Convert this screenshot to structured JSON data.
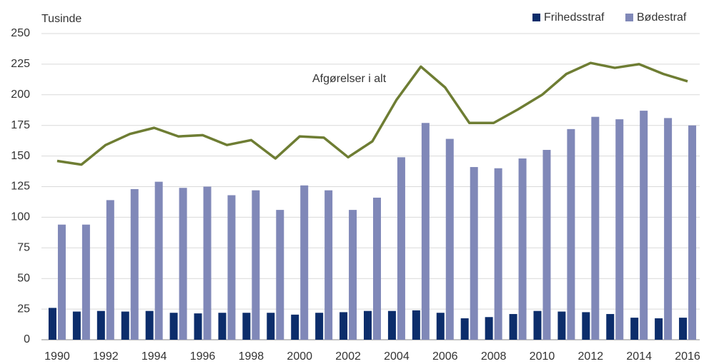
{
  "chart_data": {
    "type": "bar",
    "y_label": "Tusinde",
    "categories": [
      "1990",
      null,
      "1992",
      null,
      "1994",
      null,
      "1996",
      null,
      "1998",
      null,
      "2000",
      null,
      "2002",
      null,
      "2004",
      null,
      "2006",
      null,
      "2008",
      null,
      "2010",
      null,
      "2012",
      null,
      "2014",
      null,
      "2016"
    ],
    "series": [
      {
        "name": "Frihedsstraf",
        "type": "bar",
        "color": "#0c2d6b",
        "values": [
          26,
          23,
          23.5,
          23,
          23.5,
          22,
          21.5,
          22,
          22,
          22,
          20.5,
          22,
          22.5,
          23.5,
          23.5,
          24,
          22,
          17.5,
          18.5,
          21,
          23.5,
          23,
          22.5,
          21,
          18,
          17.5,
          18
        ]
      },
      {
        "name": "Bødestraf",
        "type": "bar",
        "color": "#8088b8",
        "values": [
          94,
          94,
          114,
          123,
          129,
          124,
          125,
          118,
          122,
          106,
          126,
          122,
          106,
          116,
          149,
          177,
          164,
          141,
          140,
          148,
          155,
          172,
          182,
          180,
          187,
          181,
          175
        ]
      },
      {
        "name": "Afgørelser i alt",
        "type": "line",
        "color": "#6e7d33",
        "values": [
          146,
          143,
          159,
          168,
          173,
          166,
          167,
          159,
          163,
          148,
          166,
          165,
          149,
          162,
          196,
          223,
          206,
          177,
          177,
          188,
          200,
          217,
          226,
          222,
          225,
          217,
          211
        ]
      }
    ],
    "ylim": [
      0,
      250
    ],
    "yticks": [
      0,
      25,
      50,
      75,
      100,
      125,
      150,
      175,
      200,
      225,
      250
    ],
    "grid": true,
    "legend": "top-right"
  }
}
